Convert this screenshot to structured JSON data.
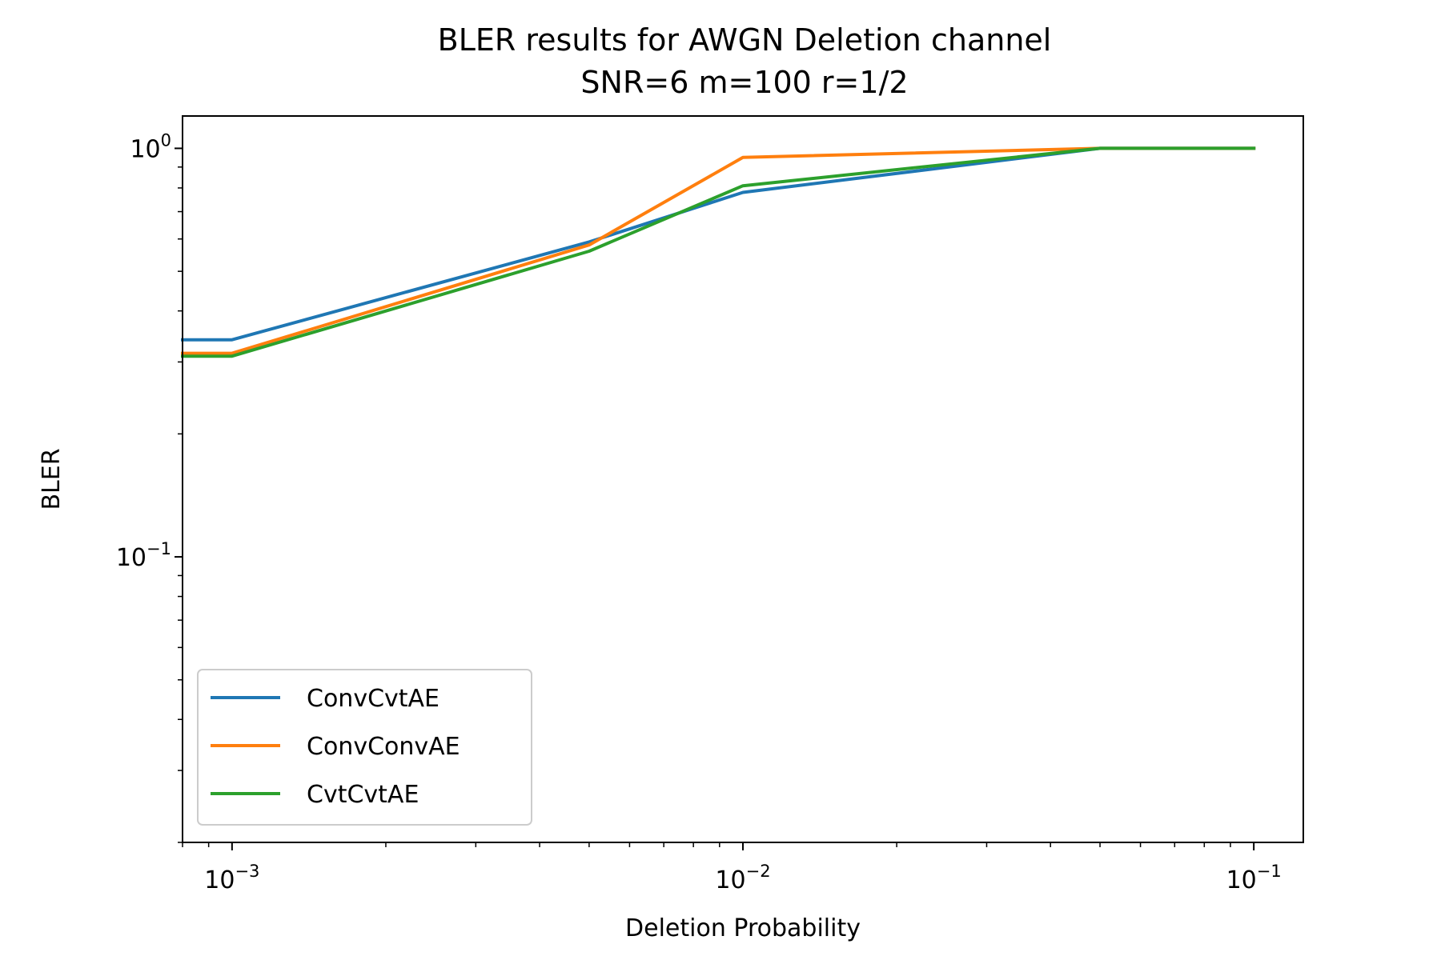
{
  "chart_data": {
    "type": "line",
    "title": "BLER results for AWGN Deletion channel",
    "subtitle": "SNR=6 m=100 r=1/2",
    "xlabel": "Deletion Probability",
    "ylabel": "BLER",
    "xscale": "log",
    "yscale": "log",
    "xlim": [
      0.0008,
      0.125
    ],
    "ylim": [
      0.02,
      1.2
    ],
    "grid": false,
    "legend_position": "lower-left",
    "x_ticks": [
      {
        "value": 0.001,
        "base": "10",
        "exp": "−3"
      },
      {
        "value": 0.01,
        "base": "10",
        "exp": "−2"
      },
      {
        "value": 0.1,
        "base": "10",
        "exp": "−1"
      }
    ],
    "y_ticks": [
      {
        "value": 1,
        "base": "10",
        "exp": "0"
      },
      {
        "value": 0.1,
        "base": "10",
        "exp": "−1"
      }
    ],
    "x": [
      0.0008,
      0.001,
      0.005,
      0.01,
      0.05,
      0.1
    ],
    "series": [
      {
        "name": "ConvCvtAE",
        "color": "#1f77b4",
        "values": [
          0.34,
          0.34,
          0.59,
          0.78,
          1.0,
          1.0
        ]
      },
      {
        "name": "ConvConvAE",
        "color": "#ff7f0e",
        "values": [
          0.315,
          0.315,
          0.58,
          0.95,
          1.0,
          1.0
        ]
      },
      {
        "name": "CvtCvtAE",
        "color": "#2ca02c",
        "values": [
          0.31,
          0.31,
          0.56,
          0.81,
          1.0,
          1.0
        ]
      }
    ]
  }
}
